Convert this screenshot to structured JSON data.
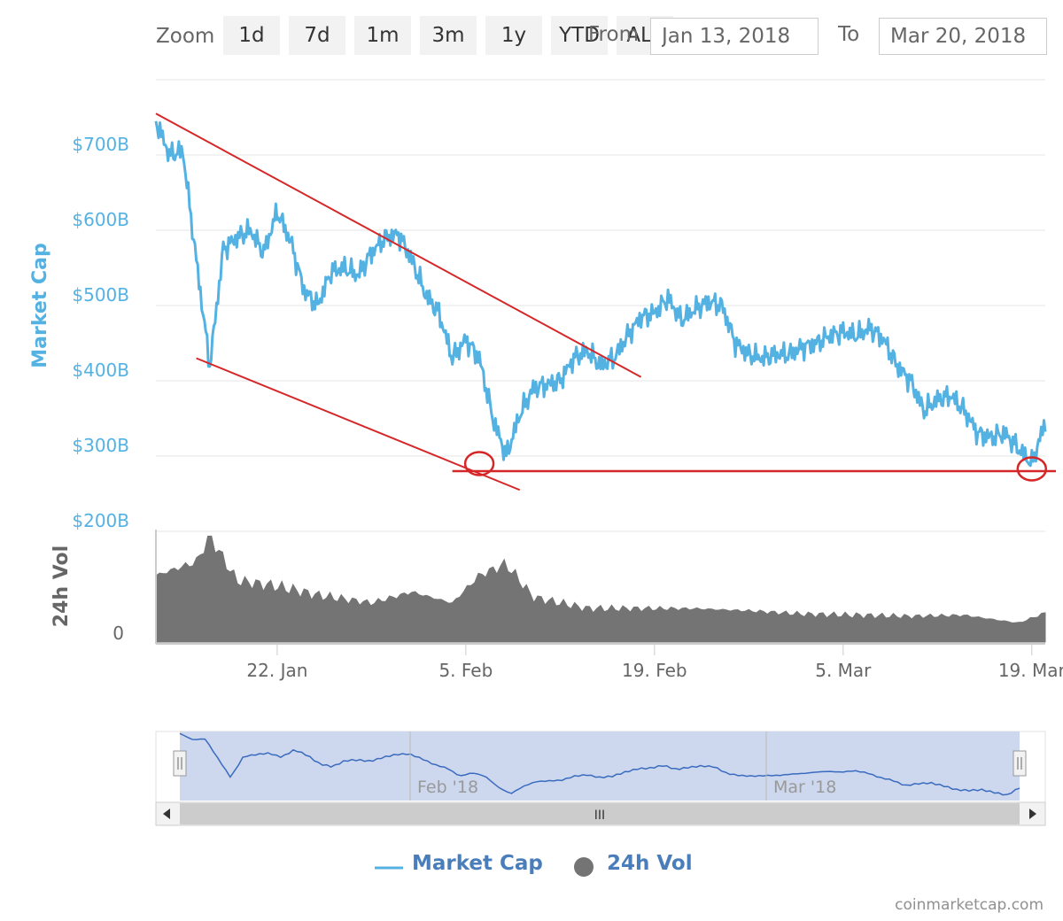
{
  "toolbar": {
    "zoom_label": "Zoom",
    "buttons": [
      "1d",
      "7d",
      "1m",
      "3m",
      "1y",
      "YTD",
      "ALL"
    ],
    "from_label": "From",
    "to_label": "To",
    "from_value": "Jan 13, 2018",
    "to_value": "Mar 20, 2018"
  },
  "credits": "coinmarketcap.com",
  "colors": {
    "market_cap": "#54b2e3",
    "volume": "#747474",
    "annotation": "#d62728",
    "navigator_fill": "#cdd8ee",
    "navigator_line": "#3a6bbf"
  },
  "chart_data": {
    "type": "line",
    "title": "",
    "xlabel": "",
    "ylabel": "Market Cap",
    "y2label": "24h Vol",
    "x_ticks": [
      "22. Jan",
      "5. Feb",
      "19. Feb",
      "5. Mar",
      "19. Mar"
    ],
    "y_ticks": [
      "$200B",
      "$300B",
      "$400B",
      "$500B",
      "$600B",
      "$700B"
    ],
    "vol_ticks": [
      "0"
    ],
    "ylim": [
      200,
      800
    ],
    "y_units": "billion USD",
    "legend": [
      "Market Cap",
      "24h Vol"
    ],
    "legend_position": "bottom",
    "navigator_labels": [
      "Feb '18",
      "Mar '18"
    ],
    "navigator_handle": "III",
    "series": [
      {
        "name": "Market Cap",
        "x": [
          "2018-01-13",
          "2018-01-14",
          "2018-01-15",
          "2018-01-16",
          "2018-01-17",
          "2018-01-18",
          "2018-01-19",
          "2018-01-20",
          "2018-01-21",
          "2018-01-22",
          "2018-01-23",
          "2018-01-24",
          "2018-01-25",
          "2018-01-26",
          "2018-01-27",
          "2018-01-28",
          "2018-01-29",
          "2018-01-30",
          "2018-01-31",
          "2018-02-01",
          "2018-02-02",
          "2018-02-03",
          "2018-02-04",
          "2018-02-05",
          "2018-02-06",
          "2018-02-07",
          "2018-02-08",
          "2018-02-09",
          "2018-02-10",
          "2018-02-11",
          "2018-02-12",
          "2018-02-13",
          "2018-02-14",
          "2018-02-15",
          "2018-02-16",
          "2018-02-17",
          "2018-02-18",
          "2018-02-19",
          "2018-02-20",
          "2018-02-21",
          "2018-02-22",
          "2018-02-23",
          "2018-02-24",
          "2018-02-25",
          "2018-02-26",
          "2018-02-27",
          "2018-02-28",
          "2018-03-01",
          "2018-03-02",
          "2018-03-03",
          "2018-03-04",
          "2018-03-05",
          "2018-03-06",
          "2018-03-07",
          "2018-03-08",
          "2018-03-09",
          "2018-03-10",
          "2018-03-11",
          "2018-03-12",
          "2018-03-13",
          "2018-03-14",
          "2018-03-15",
          "2018-03-16",
          "2018-03-17",
          "2018-03-18",
          "2018-03-19",
          "2018-03-20"
        ],
        "values": [
          745,
          700,
          705,
          560,
          420,
          575,
          590,
          600,
          570,
          625,
          585,
          520,
          500,
          545,
          550,
          540,
          570,
          590,
          595,
          560,
          515,
          490,
          430,
          455,
          430,
          350,
          300,
          355,
          390,
          395,
          400,
          430,
          440,
          420,
          430,
          460,
          485,
          490,
          510,
          480,
          495,
          505,
          500,
          450,
          435,
          430,
          435,
          435,
          445,
          450,
          460,
          465,
          460,
          470,
          455,
          420,
          400,
          360,
          375,
          380,
          360,
          330,
          325,
          330,
          310,
          290,
          345
        ]
      },
      {
        "name": "24h Vol",
        "x": [
          "2018-01-13",
          "2018-01-16",
          "2018-01-17",
          "2018-01-19",
          "2018-01-22",
          "2018-01-25",
          "2018-01-29",
          "2018-02-01",
          "2018-02-04",
          "2018-02-06",
          "2018-02-08",
          "2018-02-10",
          "2018-02-14",
          "2018-02-18",
          "2018-02-22",
          "2018-02-26",
          "2018-03-02",
          "2018-03-06",
          "2018-03-10",
          "2018-03-14",
          "2018-03-18",
          "2018-03-20"
        ],
        "values": [
          0.6,
          0.72,
          0.95,
          0.55,
          0.5,
          0.42,
          0.35,
          0.45,
          0.35,
          0.6,
          0.7,
          0.4,
          0.3,
          0.3,
          0.3,
          0.28,
          0.25,
          0.24,
          0.23,
          0.24,
          0.17,
          0.26
        ]
      }
    ],
    "annotations": [
      {
        "type": "trendline",
        "points": [
          [
            "2018-01-13",
            755
          ],
          [
            "2018-02-18",
            405
          ]
        ]
      },
      {
        "type": "trendline",
        "points": [
          [
            "2018-01-16",
            430
          ],
          [
            "2018-02-09",
            255
          ]
        ]
      },
      {
        "type": "support_line",
        "from": "2018-02-04",
        "y": 280
      },
      {
        "type": "circle",
        "x": "2018-02-06",
        "y": 290
      },
      {
        "type": "circle",
        "x": "2018-03-19",
        "y": 283
      }
    ]
  }
}
